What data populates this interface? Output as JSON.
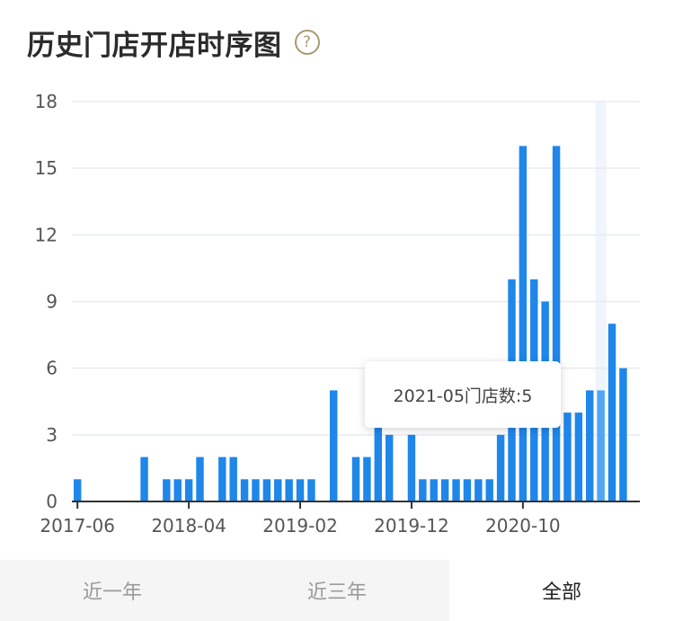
{
  "header": {
    "title": "历史门店开店时序图",
    "help_icon": "question-circle-icon",
    "help_glyph": "?"
  },
  "tooltip": {
    "text": "2021-05门店数:5"
  },
  "tabs": [
    {
      "label": "近一年",
      "active": false
    },
    {
      "label": "近三年",
      "active": false
    },
    {
      "label": "全部",
      "active": true
    }
  ],
  "colors": {
    "bar": "#1f86ea",
    "bar_highlight": "#4fa6f3",
    "grid": "#e8ebf0",
    "axis": "#333333"
  },
  "chart_data": {
    "type": "bar",
    "title": "历史门店开店时序图",
    "xlabel": "",
    "ylabel": "",
    "ylim": [
      0,
      18
    ],
    "yticks": [
      0,
      3,
      6,
      9,
      12,
      15,
      18
    ],
    "xtick_labels": [
      "2017-06",
      "2018-04",
      "2019-02",
      "2019-12",
      "2020-10"
    ],
    "grid": true,
    "categories": [
      "2017-06",
      "2017-07",
      "2017-08",
      "2017-09",
      "2017-10",
      "2017-11",
      "2017-12",
      "2018-01",
      "2018-02",
      "2018-03",
      "2018-04",
      "2018-05",
      "2018-06",
      "2018-07",
      "2018-08",
      "2018-09",
      "2018-10",
      "2018-11",
      "2018-12",
      "2019-01",
      "2019-02",
      "2019-03",
      "2019-04",
      "2019-05",
      "2019-06",
      "2019-07",
      "2019-08",
      "2019-09",
      "2019-10",
      "2019-11",
      "2019-12",
      "2020-01",
      "2020-02",
      "2020-03",
      "2020-04",
      "2020-05",
      "2020-06",
      "2020-07",
      "2020-08",
      "2020-09",
      "2020-10",
      "2020-11",
      "2020-12",
      "2021-01",
      "2021-02",
      "2021-03",
      "2021-04",
      "2021-05",
      "2021-06",
      "2021-07",
      "2021-08"
    ],
    "values": [
      1,
      0,
      0,
      0,
      0,
      0,
      2,
      0,
      1,
      1,
      1,
      2,
      0,
      2,
      2,
      1,
      1,
      1,
      1,
      1,
      1,
      1,
      0,
      5,
      0,
      2,
      2,
      4,
      3,
      0,
      3,
      1,
      1,
      1,
      1,
      1,
      1,
      1,
      3,
      10,
      16,
      10,
      9,
      16,
      4,
      4,
      5,
      5,
      8,
      6,
      0
    ],
    "highlight_index": 47
  }
}
